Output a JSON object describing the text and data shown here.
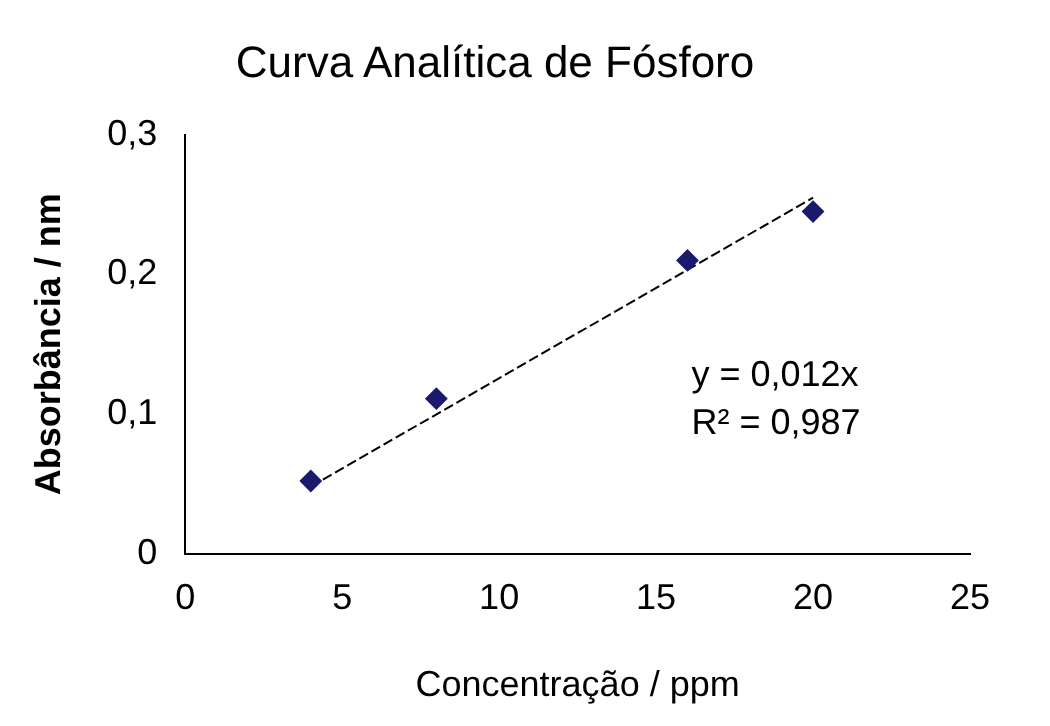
{
  "chart_data": {
    "type": "scatter",
    "title": "Curva Analítica de Fósforo",
    "xlabel": "Concentração / ppm",
    "ylabel": "Absorbância / nm",
    "series": [
      {
        "color": "#1a1a6e",
        "x": [
          4,
          8,
          16,
          20
        ],
        "values": [
          0.052,
          0.111,
          0.21,
          0.245
        ],
        "marker": "diamond"
      },
      {
        "type": "line",
        "color": "#000000",
        "x": [
          4,
          20
        ],
        "values": [
          0.048,
          0.255
        ],
        "line_style": "dashed",
        "marker": "none"
      }
    ],
    "xlim": [
      0,
      25
    ],
    "xticks": [
      0,
      5,
      10,
      15,
      20,
      25
    ],
    "ylim": [
      0,
      0.3
    ],
    "yticks": [
      {
        "value": 0,
        "label": "0"
      },
      {
        "value": 0.1,
        "label": "0,1"
      },
      {
        "value": 0.2,
        "label": "0,2"
      },
      {
        "value": 0.3,
        "label": "0,3"
      }
    ],
    "grid": false,
    "legend": false,
    "annotations": [
      "y = 0,012x",
      "R² = 0,987"
    ]
  }
}
